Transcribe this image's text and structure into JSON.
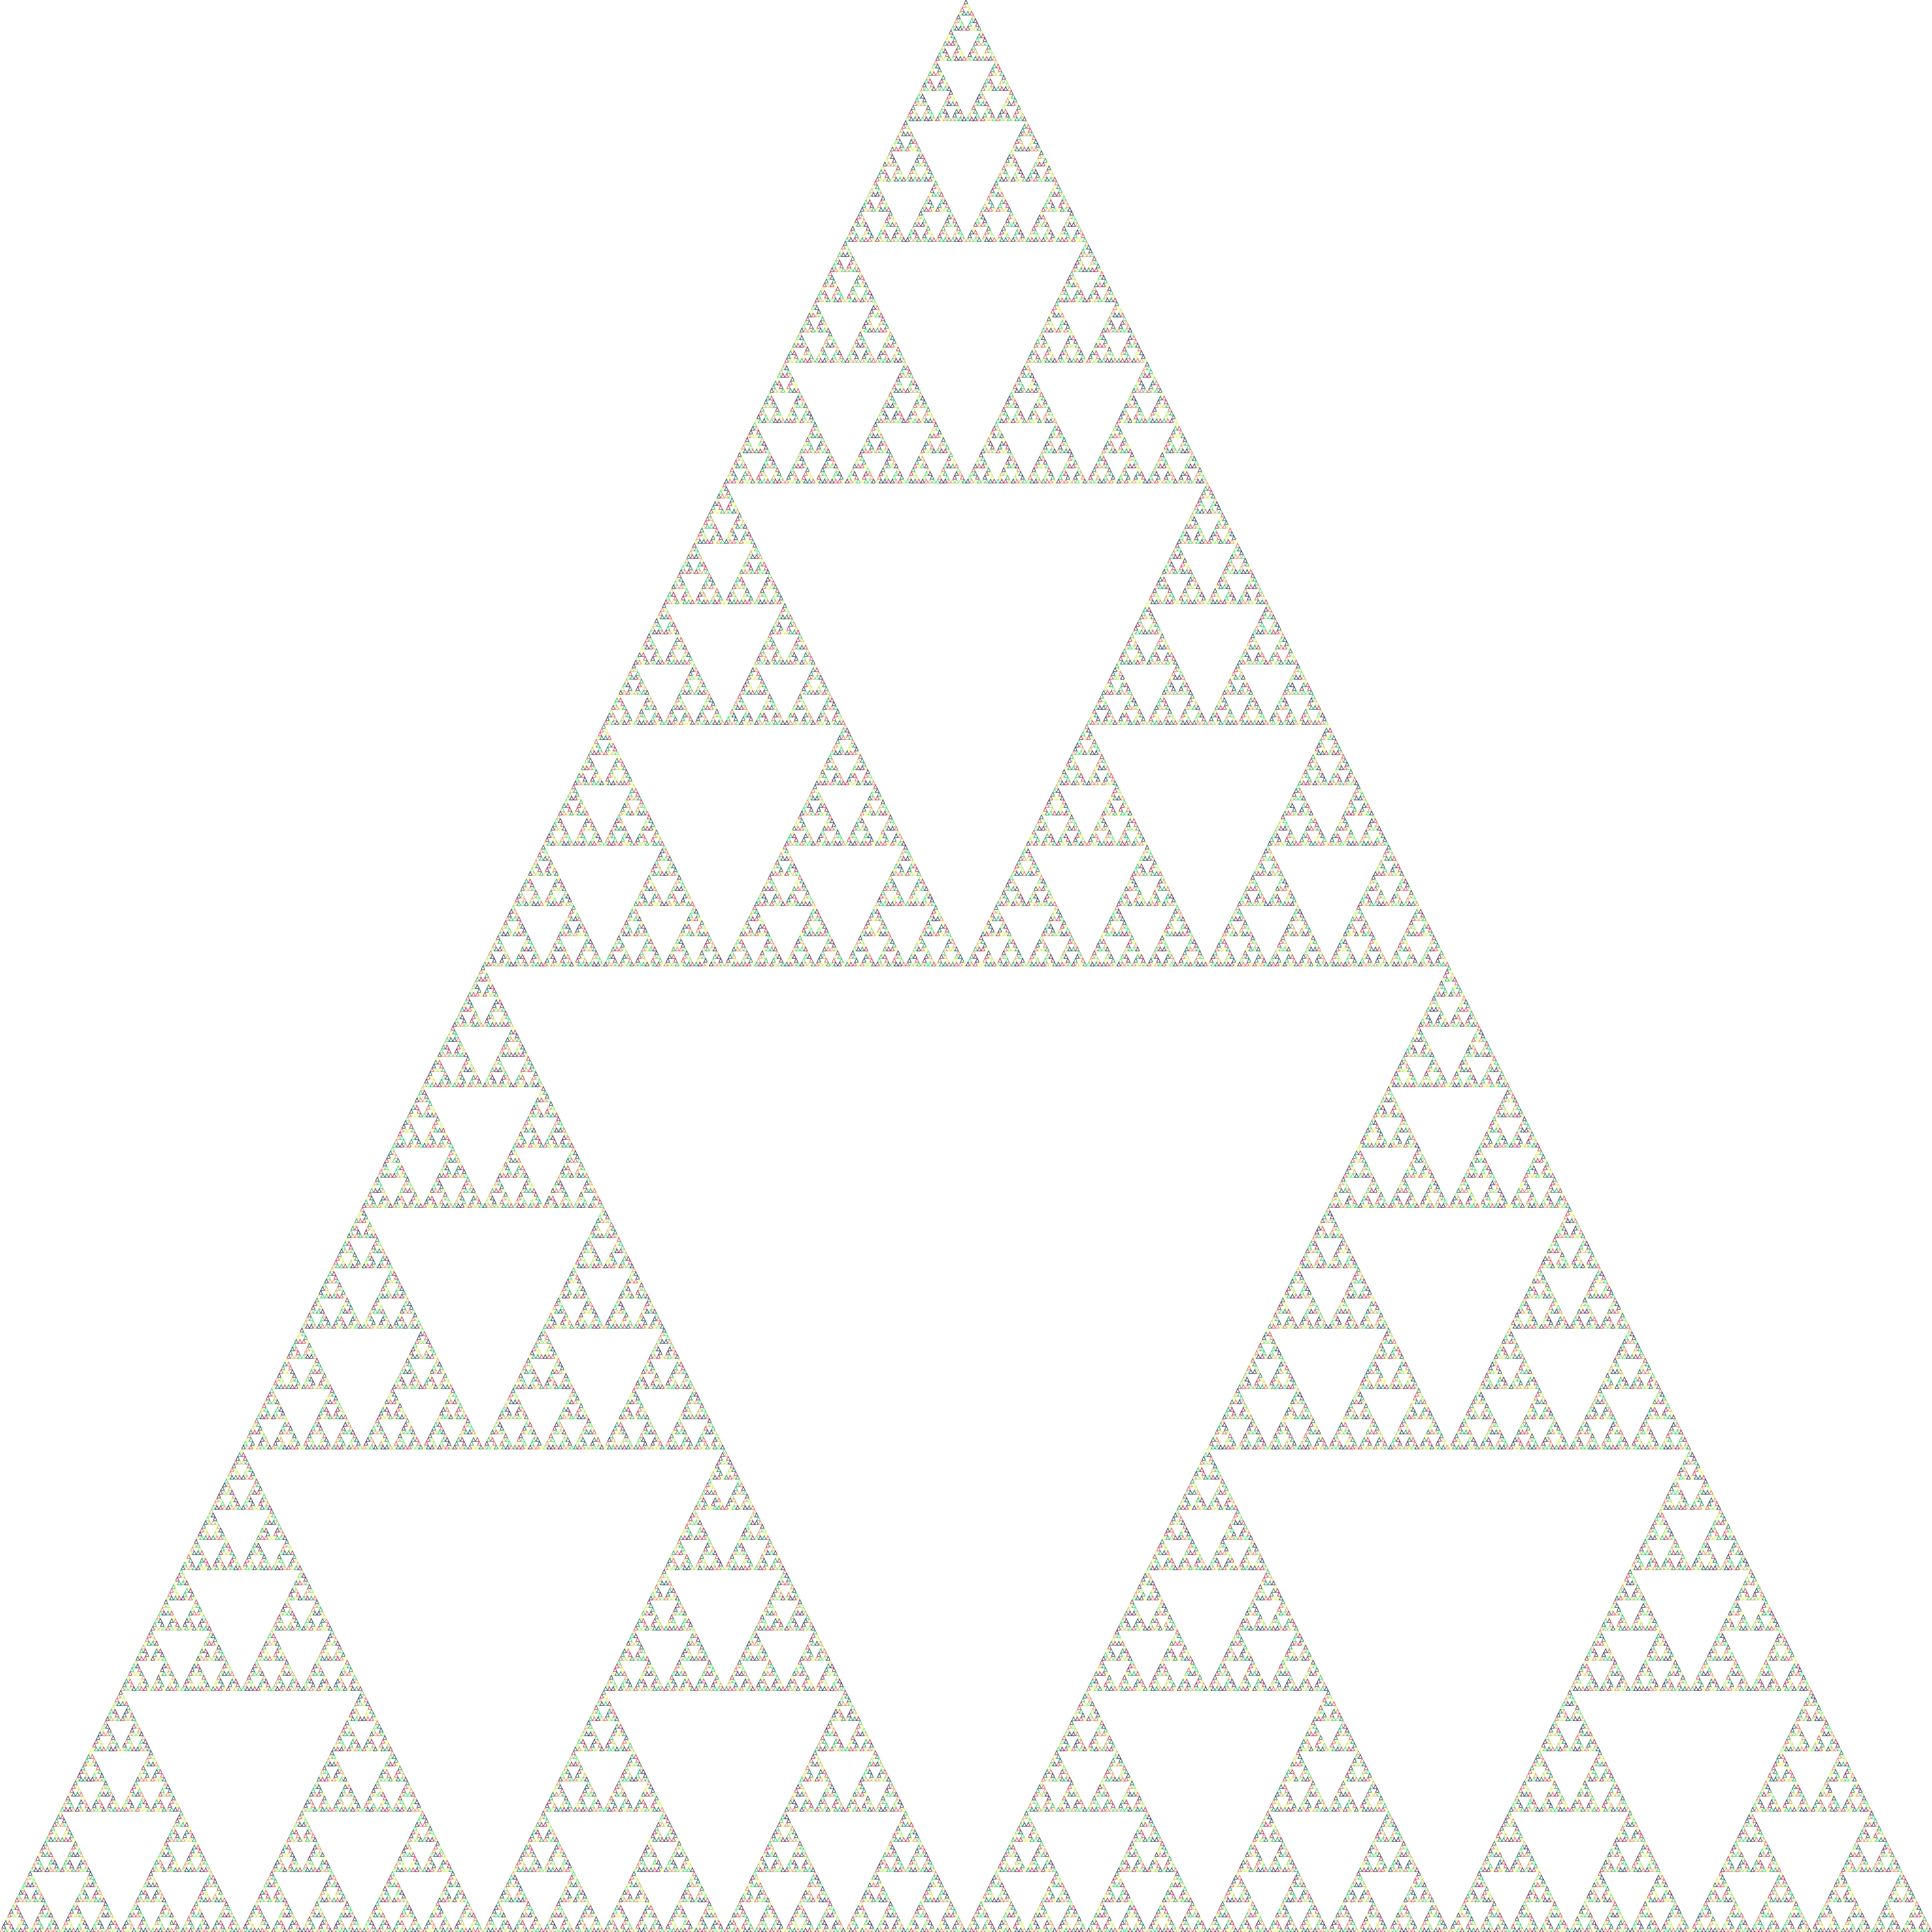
{
  "figure": {
    "kind": "sierpinski-triangle",
    "recursion_depth": 9,
    "background_color": "#ffffff",
    "palette": [
      "#e8f866",
      "#9ae66e",
      "#3ddc7a",
      "#2e9e6a",
      "#235a63",
      "#3a2f5e",
      "#a32e5e",
      "#d94a6a",
      "#e5936a",
      "#c9b870"
    ]
  }
}
